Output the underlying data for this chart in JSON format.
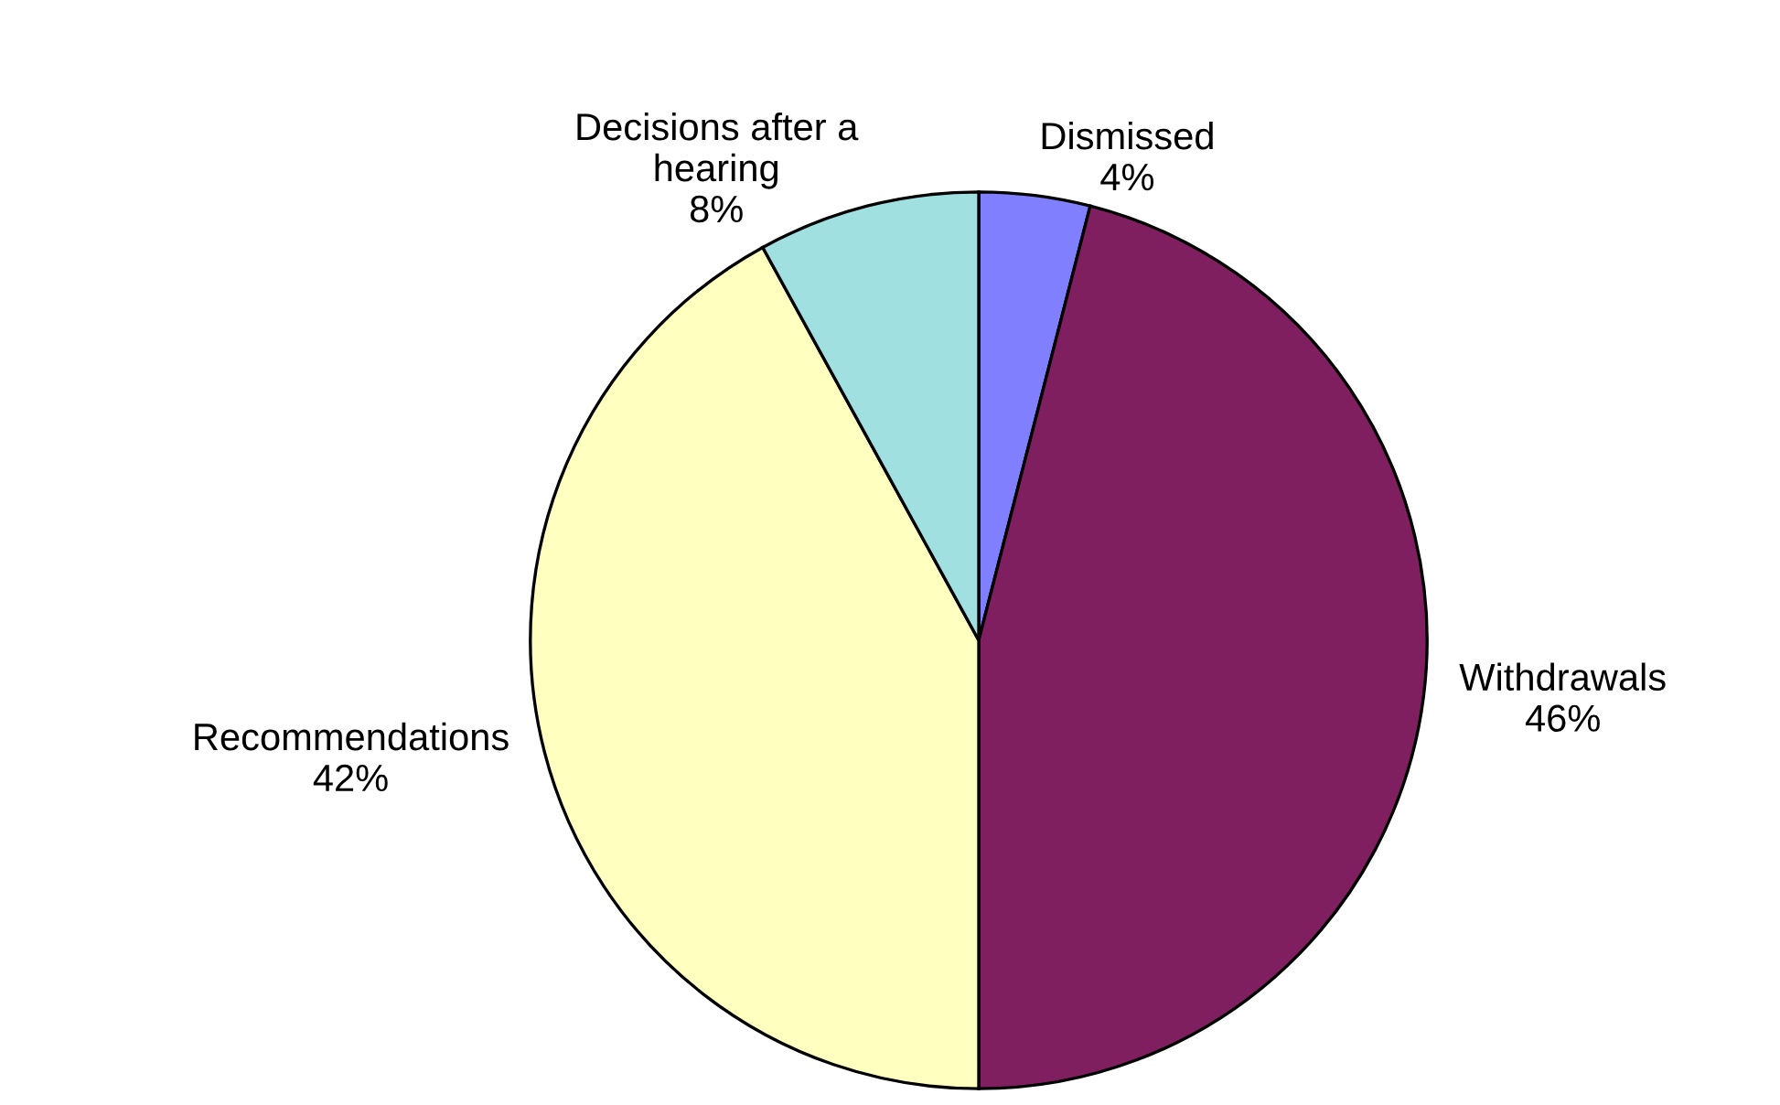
{
  "chart_data": {
    "type": "pie",
    "categories": [
      "Dismissed",
      "Withdrawals",
      "Recommendations",
      "Decisions after a\nhearing"
    ],
    "values": [
      4,
      46,
      42,
      8
    ],
    "colors": [
      "#8080ff",
      "#7f1f5f",
      "#ffffc0",
      "#a0e0e0"
    ],
    "value_labels": [
      "4%",
      "46%",
      "42%",
      "8%"
    ]
  }
}
